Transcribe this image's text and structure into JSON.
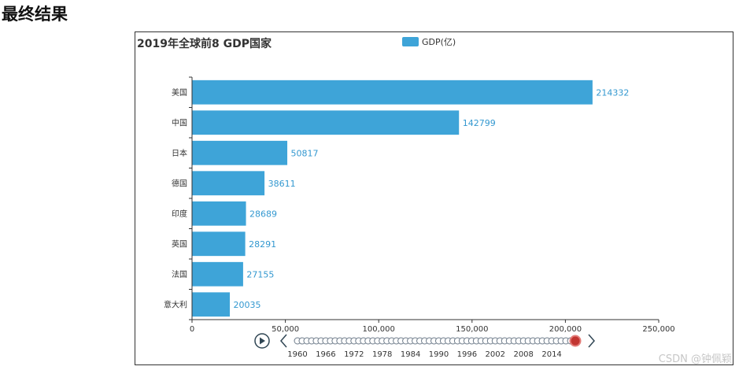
{
  "page": {
    "heading": "最终结果",
    "watermark": "CSDN @钟佩颖"
  },
  "colors": {
    "bar": "#3ea4d8",
    "label": "#3398d0",
    "timeline_dot": "#6c7a89",
    "timeline_current": "#c23531"
  },
  "chart_data": {
    "type": "bar",
    "orientation": "horizontal",
    "title": "2019年全球前8 GDP国家",
    "legend": "GDP(亿)",
    "legend_position": "top-center",
    "categories": [
      "美国",
      "中国",
      "日本",
      "德国",
      "印度",
      "英国",
      "法国",
      "意大利"
    ],
    "series": [
      {
        "name": "GDP(亿)",
        "values": [
          214332,
          142799,
          50817,
          38611,
          28689,
          28291,
          27155,
          20035
        ]
      }
    ],
    "xlim": [
      0,
      250000
    ],
    "x_ticks": [
      "0",
      "50,000",
      "100,000",
      "150,000",
      "200,000",
      "250,000"
    ],
    "grid": false,
    "data_labels": true
  },
  "timeline": {
    "year_labels": [
      "1960",
      "1966",
      "1972",
      "1978",
      "1984",
      "1990",
      "1996",
      "2002",
      "2008",
      "2014"
    ],
    "current_year": "2019",
    "point_count": 60,
    "icons": [
      "play-icon",
      "chevron-left-icon",
      "chevron-right-icon"
    ]
  }
}
